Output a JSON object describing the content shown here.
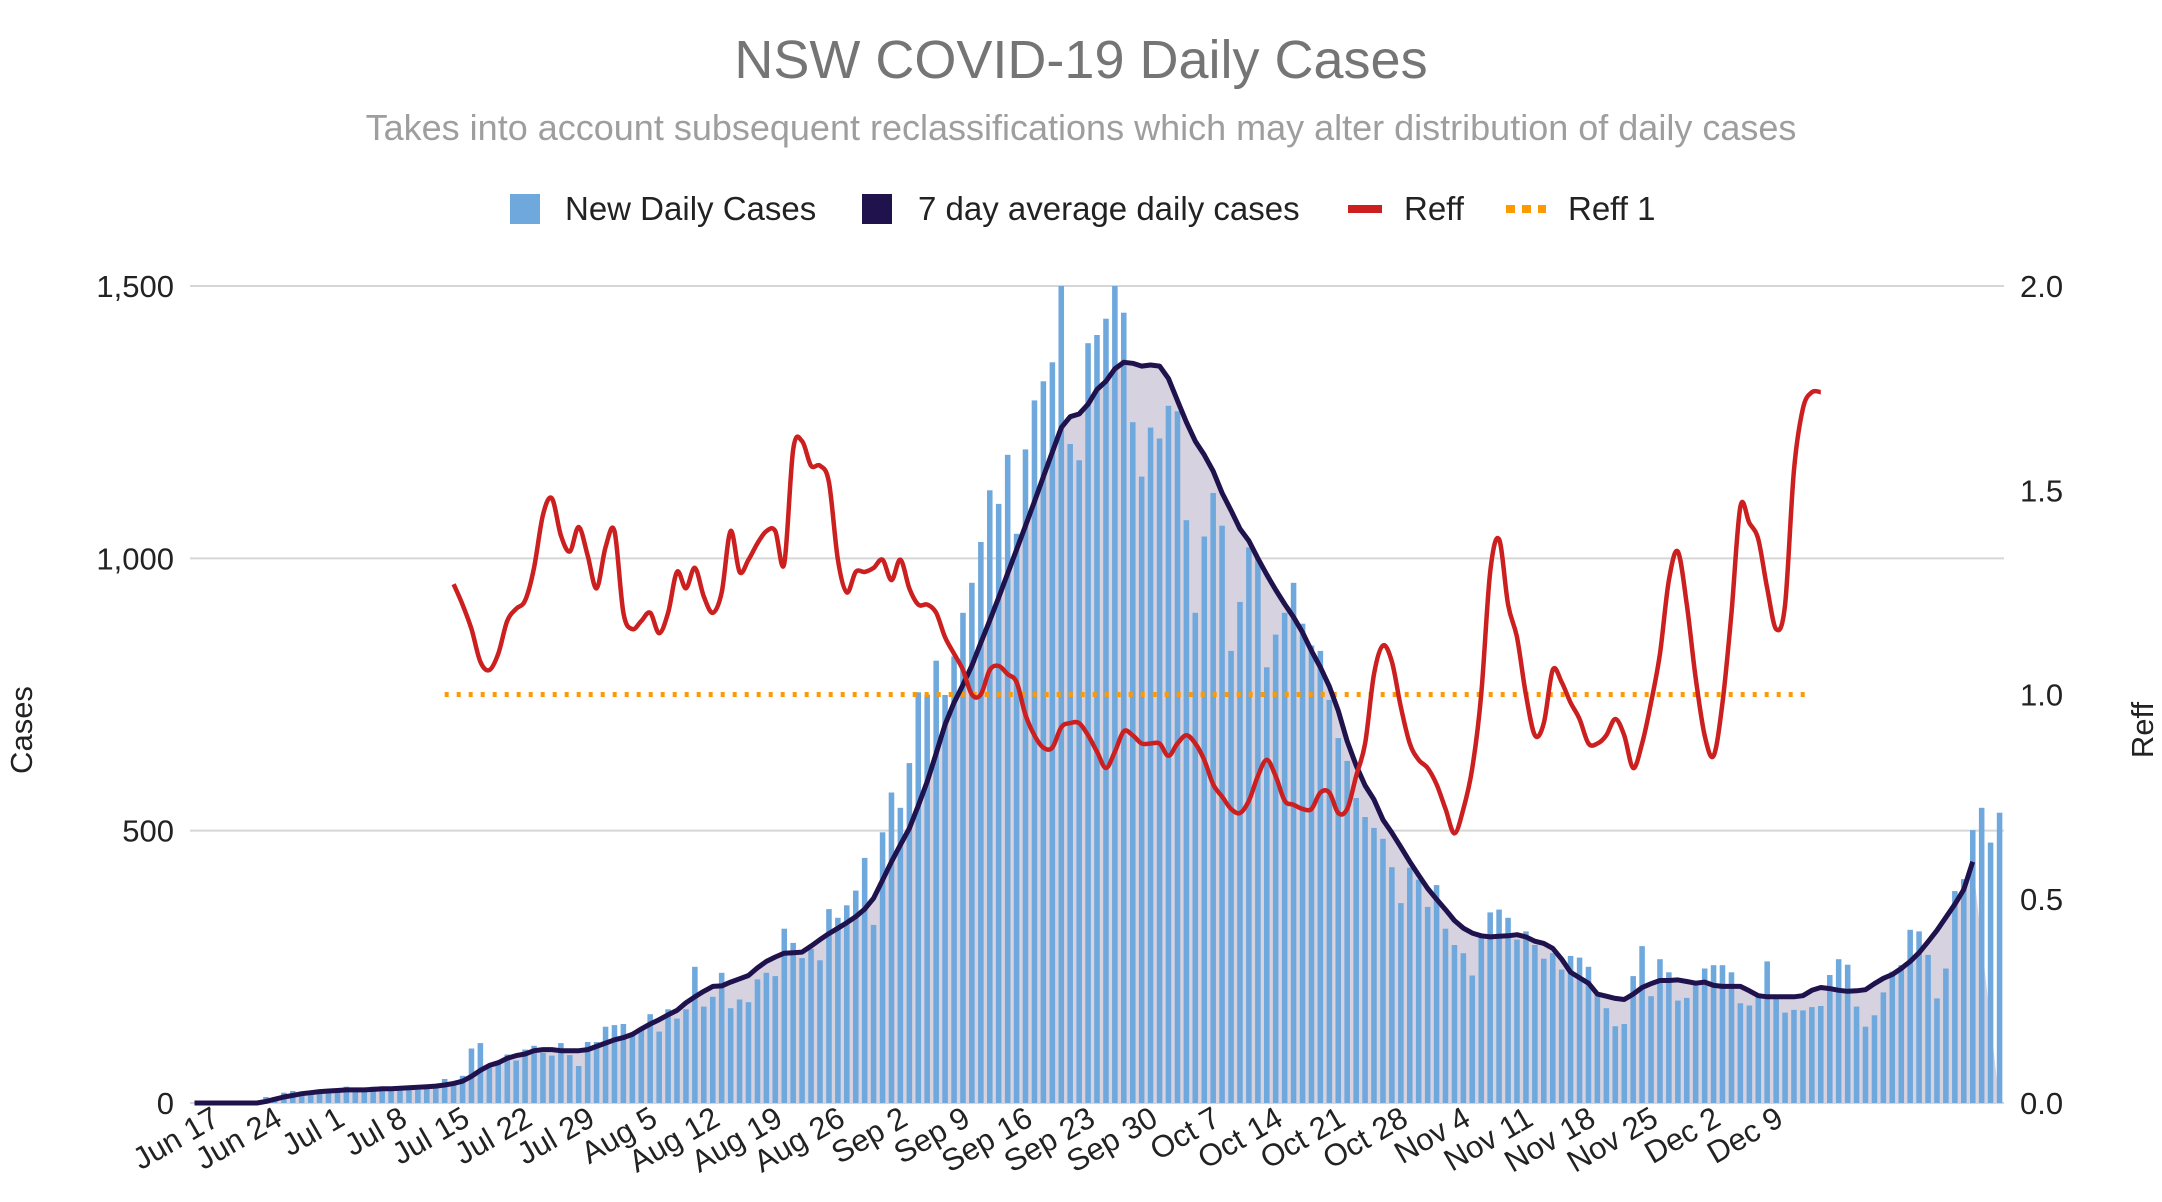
{
  "chart_data": {
    "type": "bar",
    "title": "NSW COVID-19 Daily Cases",
    "subtitle": "Takes into account subsequent reclassifications which may alter distribution of daily cases",
    "ylabel": "Cases",
    "y2label": "Reff",
    "ylim": [
      0,
      1500
    ],
    "y2lim": [
      0,
      2.0
    ],
    "yticks": [
      "0",
      "500",
      "1,000",
      "1,500"
    ],
    "y2ticks": [
      "0.0",
      "0.5",
      "1.0",
      "1.5",
      "2.0"
    ],
    "legend_position": "top",
    "grid": true,
    "x_start": "Jun 16",
    "x_tick_labels": [
      "Jun 17",
      "Jun 24",
      "Jul 1",
      "Jul 8",
      "Jul 15",
      "Jul 22",
      "Jul 29",
      "Aug 5",
      "Aug 12",
      "Aug 19",
      "Aug 26",
      "Sep 2",
      "Sep 9",
      "Sep 16",
      "Sep 23",
      "Sep 30",
      "Oct 7",
      "Oct 14",
      "Oct 21",
      "Oct 28",
      "Nov 4",
      "Nov 11",
      "Nov 18",
      "Nov 25",
      "Dec 2",
      "Dec 9"
    ],
    "legend": [
      {
        "label": "New Daily Cases",
        "color": "#6fa8dc",
        "style": "box"
      },
      {
        "label": "7 day average daily cases",
        "color": "#20124d",
        "style": "box"
      },
      {
        "label": "Reff",
        "color": "#cc1f1f",
        "style": "line"
      },
      {
        "label": "Reff 1",
        "color": "#ff9900",
        "style": "dotted"
      }
    ],
    "series": [
      {
        "name": "New Daily Cases",
        "type": "bar",
        "color": "#6fa8dc",
        "values": [
          0,
          3,
          0,
          0,
          0,
          0,
          0,
          3,
          11,
          11,
          19,
          22,
          19,
          19,
          24,
          20,
          25,
          30,
          22,
          27,
          30,
          22,
          24,
          30,
          27,
          24,
          31,
          35,
          44,
          38,
          50,
          100,
          110,
          65,
          77,
          89,
          78,
          98,
          105,
          92,
          87,
          110,
          88,
          68,
          112,
          112,
          140,
          143,
          145,
          125,
          135,
          163,
          131,
          172,
          155,
          172,
          250,
          177,
          195,
          239,
          174,
          190,
          185,
          227,
          239,
          233,
          320,
          294,
          266,
          283,
          262,
          356,
          340,
          363,
          390,
          450,
          327,
          497,
          570,
          542,
          624,
          754,
          750,
          812,
          749,
          820,
          900,
          955,
          1030,
          1125,
          1100,
          1190,
          1045,
          1200,
          1290,
          1325,
          1360,
          1500,
          1210,
          1180,
          1395,
          1410,
          1440,
          1500,
          1451,
          1250,
          1150,
          1240,
          1220,
          1280,
          1270,
          1070,
          900,
          1040,
          1120,
          1060,
          830,
          920,
          1020,
          1000,
          800,
          860,
          900,
          955,
          880,
          840,
          830,
          740,
          670,
          628,
          560,
          525,
          505,
          485,
          433,
          367,
          432,
          410,
          360,
          400,
          320,
          290,
          275,
          234,
          305,
          350,
          355,
          340,
          300,
          315,
          290,
          265,
          275,
          245,
          270,
          267,
          250,
          202,
          174,
          141,
          145,
          233,
          288,
          196,
          264,
          240,
          188,
          193,
          220,
          247,
          253,
          253,
          240,
          183,
          179,
          200,
          260,
          192,
          166,
          171,
          170,
          176,
          178,
          235,
          264,
          254,
          177,
          140,
          161,
          203,
          241,
          253,
          318,
          315,
          272,
          192,
          247,
          389,
          411,
          501,
          542,
          478,
          533
        ]
      },
      {
        "name": "7 day average daily cases",
        "type": "line",
        "color": "#20124d",
        "values": [
          0,
          0,
          0,
          0,
          0,
          0,
          0,
          0,
          3,
          7,
          11,
          14,
          17,
          19,
          21,
          22,
          23,
          24,
          24,
          24,
          25,
          26,
          26,
          27,
          28,
          29,
          30,
          31,
          33,
          36,
          40,
          49,
          60,
          69,
          74,
          82,
          87,
          90,
          96,
          98,
          98,
          96,
          96,
          96,
          98,
          104,
          110,
          116,
          120,
          126,
          136,
          145,
          153,
          162,
          170,
          184,
          195,
          205,
          214,
          215,
          222,
          228,
          234,
          248,
          260,
          268,
          275,
          276,
          277,
          288,
          300,
          311,
          321,
          331,
          342,
          356,
          376,
          409,
          443,
          474,
          504,
          546,
          590,
          642,
          695,
          735,
          768,
          803,
          845,
          886,
          928,
          972,
          1016,
          1060,
          1104,
          1150,
          1195,
          1240,
          1260,
          1265,
          1283,
          1310,
          1325,
          1348,
          1360,
          1358,
          1353,
          1355,
          1353,
          1330,
          1290,
          1250,
          1215,
          1190,
          1160,
          1120,
          1088,
          1054,
          1032,
          1000,
          970,
          942,
          916,
          892,
          864,
          830,
          800,
          765,
          720,
          664,
          620,
          583,
          557,
          520,
          496,
          470,
          443,
          418,
          394,
          374,
          355,
          335,
          321,
          312,
          307,
          305,
          306,
          307,
          309,
          305,
          297,
          293,
          284,
          264,
          240,
          230,
          220,
          200,
          196,
          192,
          190,
          200,
          212,
          219,
          225,
          225,
          226,
          223,
          220,
          222,
          216,
          214,
          214,
          214,
          206,
          197,
          195,
          195,
          195,
          195,
          197,
          207,
          212,
          210,
          207,
          205,
          206,
          208,
          219,
          229,
          236,
          247,
          260,
          276,
          296,
          317,
          341,
          365,
          392,
          443
        ]
      },
      {
        "name": "Reff",
        "type": "line",
        "axis": "right",
        "color": "#cc1f1f",
        "start_index": 29,
        "values": [
          1.27,
          1.22,
          1.16,
          1.08,
          1.06,
          1.1,
          1.18,
          1.21,
          1.23,
          1.31,
          1.44,
          1.48,
          1.39,
          1.35,
          1.41,
          1.34,
          1.26,
          1.36,
          1.4,
          1.2,
          1.16,
          1.18,
          1.2,
          1.15,
          1.2,
          1.3,
          1.26,
          1.31,
          1.24,
          1.2,
          1.25,
          1.4,
          1.3,
          1.33,
          1.37,
          1.4,
          1.4,
          1.32,
          1.6,
          1.62,
          1.56,
          1.56,
          1.52,
          1.33,
          1.25,
          1.3,
          1.3,
          1.31,
          1.33,
          1.28,
          1.33,
          1.26,
          1.22,
          1.22,
          1.2,
          1.14,
          1.1,
          1.06,
          1.0,
          1.0,
          1.06,
          1.07,
          1.05,
          1.03,
          0.95,
          0.9,
          0.87,
          0.87,
          0.92,
          0.93,
          0.93,
          0.9,
          0.86,
          0.82,
          0.86,
          0.91,
          0.9,
          0.88,
          0.88,
          0.88,
          0.85,
          0.88,
          0.9,
          0.88,
          0.84,
          0.78,
          0.75,
          0.72,
          0.71,
          0.74,
          0.8,
          0.84,
          0.8,
          0.74,
          0.73,
          0.72,
          0.72,
          0.76,
          0.76,
          0.71,
          0.72,
          0.8,
          0.88,
          1.05,
          1.12,
          1.08,
          0.97,
          0.88,
          0.84,
          0.82,
          0.78,
          0.72,
          0.66,
          0.72,
          0.82,
          1.0,
          1.3,
          1.38,
          1.22,
          1.14,
          1.0,
          0.9,
          0.93,
          1.06,
          1.03,
          0.98,
          0.94,
          0.88,
          0.88,
          0.9,
          0.94,
          0.9,
          0.82,
          0.88,
          0.98,
          1.1,
          1.28,
          1.35,
          1.22,
          1.04,
          0.9,
          0.85,
          0.98,
          1.2,
          1.46,
          1.42,
          1.38,
          1.26,
          1.16,
          1.22,
          1.55,
          1.7,
          1.74,
          1.74
        ]
      },
      {
        "name": "Reff 1",
        "type": "line",
        "axis": "right",
        "color": "#ff9900",
        "style": "dotted",
        "start_index": 28,
        "end_index": 181,
        "value": 1.0
      }
    ]
  }
}
